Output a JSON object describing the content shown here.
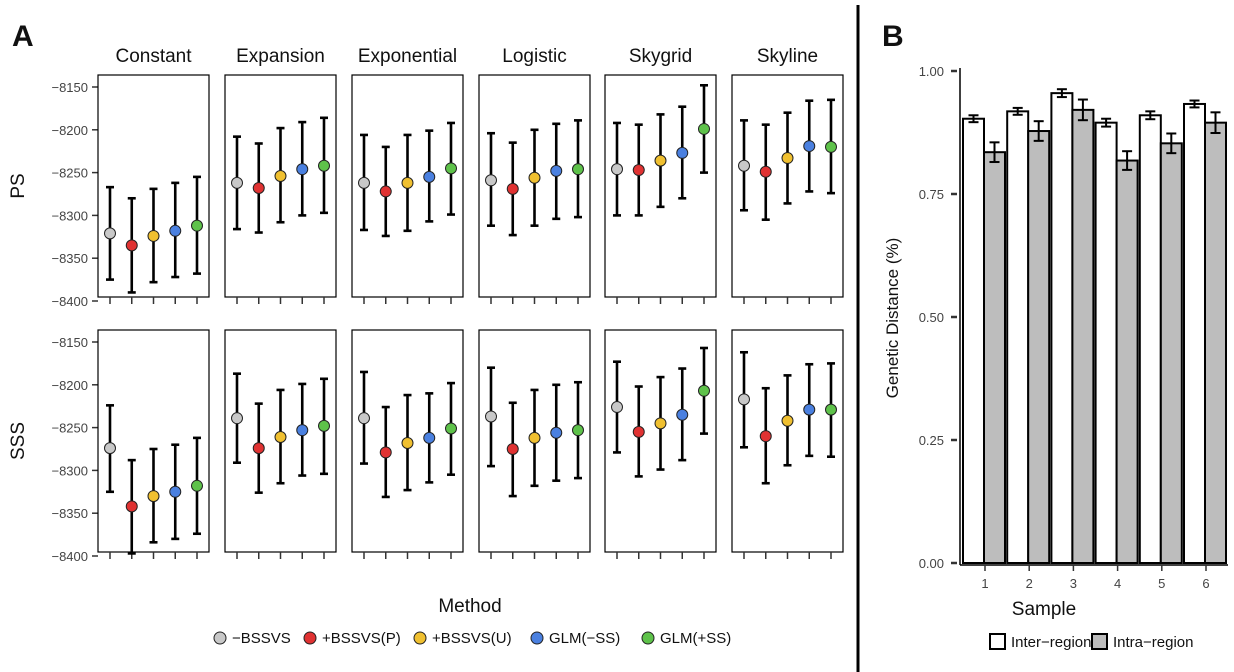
{
  "panel_a": {
    "label": "A",
    "facets": [
      "Constant",
      "Expansion",
      "Exponential",
      "Logistic",
      "Skygrid",
      "Skyline"
    ],
    "rows": [
      "PS",
      "SSS"
    ],
    "y_ticks": [
      -8150,
      -8200,
      -8250,
      -8300,
      -8350,
      -8400
    ],
    "y_tick_labels": [
      "−8150",
      "−8200",
      "−8250",
      "−8300",
      "−8350",
      "−8400"
    ],
    "xlabel": "Method",
    "legend": [
      {
        "label": "−BSSVS",
        "color": "#c8c8c8"
      },
      {
        "label": "+BSSVS(P)",
        "color": "#e03232"
      },
      {
        "label": "+BSSVS(U)",
        "color": "#f0c030"
      },
      {
        "label": "GLM(−SS)",
        "color": "#4a80e0"
      },
      {
        "label": "GLM(+SS)",
        "color": "#5ec24a"
      }
    ]
  },
  "panel_b": {
    "label": "B",
    "ylabel": "Genetic Distance (%)",
    "xlabel": "Sample",
    "y_tick_labels": [
      "0.00",
      "0.25",
      "0.50",
      "0.75",
      "1.00"
    ],
    "categories": [
      "1",
      "2",
      "3",
      "4",
      "5",
      "6"
    ],
    "legend": [
      {
        "label": "Inter−region",
        "color": "#ffffff"
      },
      {
        "label": "Intra−region",
        "color": "#bdbdbd"
      }
    ]
  },
  "chart_data": [
    {
      "type": "scatter",
      "subtype": "point-with-errorbars",
      "facets": [
        "Constant",
        "Expansion",
        "Exponential",
        "Logistic",
        "Skygrid",
        "Skyline"
      ],
      "rows": [
        "PS",
        "SSS"
      ],
      "methods": [
        "−BSSVS",
        "+BSSVS(P)",
        "+BSSVS(U)",
        "GLM(−SS)",
        "GLM(+SS)"
      ],
      "ylim": [
        -8410,
        -8140
      ],
      "xlabel": "Method",
      "grid": false,
      "legend_position": "bottom",
      "values": {
        "PS": {
          "Constant": {
            "mean": [
              -8321,
              -8335,
              -8324,
              -8318,
              -8312
            ],
            "low": [
              -8375,
              -8390,
              -8378,
              -8372,
              -8368
            ],
            "high": [
              -8267,
              -8280,
              -8269,
              -8262,
              -8255
            ]
          },
          "Expansion": {
            "mean": [
              -8262,
              -8268,
              -8254,
              -8246,
              -8242
            ],
            "low": [
              -8316,
              -8320,
              -8308,
              -8300,
              -8297
            ],
            "high": [
              -8208,
              -8216,
              -8198,
              -8191,
              -8186
            ]
          },
          "Exponential": {
            "mean": [
              -8262,
              -8272,
              -8262,
              -8255,
              -8245
            ],
            "low": [
              -8317,
              -8324,
              -8318,
              -8307,
              -8299
            ],
            "high": [
              -8206,
              -8220,
              -8206,
              -8201,
              -8192
            ]
          },
          "Logistic": {
            "mean": [
              -8259,
              -8269,
              -8256,
              -8248,
              -8246
            ],
            "low": [
              -8312,
              -8323,
              -8312,
              -8304,
              -8302
            ],
            "high": [
              -8204,
              -8215,
              -8200,
              -8193,
              -8189
            ]
          },
          "Skygrid": {
            "mean": [
              -8246,
              -8247,
              -8236,
              -8227,
              -8199
            ],
            "low": [
              -8300,
              -8300,
              -8290,
              -8280,
              -8250
            ],
            "high": [
              -8192,
              -8194,
              -8182,
              -8173,
              -8148
            ]
          },
          "Skyline": {
            "mean": [
              -8242,
              -8249,
              -8233,
              -8219,
              -8220
            ],
            "low": [
              -8294,
              -8305,
              -8286,
              -8272,
              -8274
            ],
            "high": [
              -8189,
              -8194,
              -8180,
              -8166,
              -8165
            ]
          }
        },
        "SSS": {
          "Constant": {
            "mean": [
              -8274,
              -8342,
              -8330,
              -8325,
              -8318
            ],
            "low": [
              -8325,
              -8397,
              -8384,
              -8380,
              -8374
            ],
            "high": [
              -8224,
              -8288,
              -8275,
              -8270,
              -8262
            ]
          },
          "Expansion": {
            "mean": [
              -8239,
              -8274,
              -8261,
              -8253,
              -8248
            ],
            "low": [
              -8291,
              -8326,
              -8315,
              -8306,
              -8304
            ],
            "high": [
              -8187,
              -8222,
              -8206,
              -8199,
              -8193
            ]
          },
          "Exponential": {
            "mean": [
              -8239,
              -8279,
              -8268,
              -8262,
              -8251
            ],
            "low": [
              -8292,
              -8331,
              -8323,
              -8314,
              -8305
            ],
            "high": [
              -8185,
              -8226,
              -8212,
              -8210,
              -8198
            ]
          },
          "Logistic": {
            "mean": [
              -8237,
              -8275,
              -8262,
              -8256,
              -8253
            ],
            "low": [
              -8295,
              -8330,
              -8318,
              -8312,
              -8309
            ],
            "high": [
              -8180,
              -8221,
              -8206,
              -8200,
              -8197
            ]
          },
          "Skygrid": {
            "mean": [
              -8226,
              -8255,
              -8245,
              -8235,
              -8207
            ],
            "low": [
              -8279,
              -8307,
              -8299,
              -8288,
              -8257
            ],
            "high": [
              -8173,
              -8202,
              -8191,
              -8181,
              -8157
            ]
          },
          "Skyline": {
            "mean": [
              -8217,
              -8260,
              -8242,
              -8229,
              -8229
            ],
            "low": [
              -8273,
              -8315,
              -8294,
              -8283,
              -8284
            ],
            "high": [
              -8162,
              -8204,
              -8189,
              -8176,
              -8175
            ]
          }
        }
      }
    },
    {
      "type": "bar",
      "subtype": "grouped-with-errorbars",
      "categories": [
        "1",
        "2",
        "3",
        "4",
        "5",
        "6"
      ],
      "series": [
        {
          "name": "Inter−region",
          "values": [
            0.903,
            0.918,
            0.955,
            0.895,
            0.91,
            0.933
          ],
          "err": [
            0.007,
            0.007,
            0.008,
            0.008,
            0.008,
            0.007
          ]
        },
        {
          "name": "Intra−region",
          "values": [
            0.835,
            0.878,
            0.921,
            0.818,
            0.853,
            0.895
          ],
          "err": [
            0.02,
            0.02,
            0.021,
            0.019,
            0.02,
            0.021
          ]
        }
      ],
      "xlabel": "Sample",
      "ylabel": "Genetic Distance (%)",
      "ylim": [
        0,
        1.0
      ],
      "grid": false,
      "legend_position": "bottom"
    }
  ]
}
